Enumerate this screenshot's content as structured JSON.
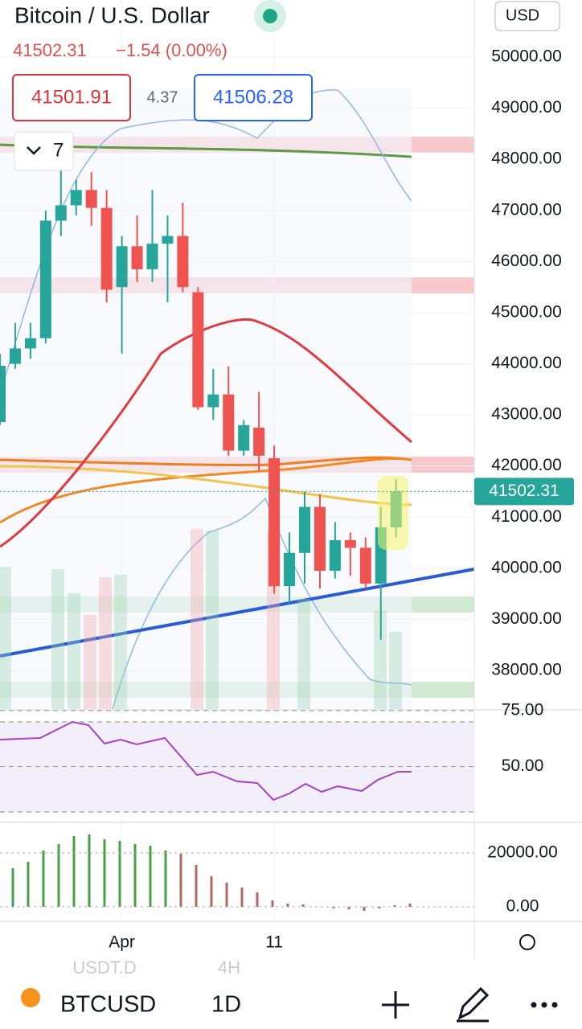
{
  "header": {
    "title": "Bitcoin / U.S. Dollar",
    "quote": "41502.31",
    "change": "−1.54 (0.00%)",
    "bid": "41501.91",
    "spread": "4.37",
    "ask": "41506.28",
    "currency": "USD",
    "indicators": "7"
  },
  "chart_data": {
    "type": "candlestick",
    "up_color": "#26a69a",
    "down_color": "#ef5350",
    "ylim": [
      37245,
      51117
    ],
    "yticks": [
      {
        "value": 38000,
        "label": "38000.00"
      },
      {
        "value": 39000,
        "label": "39000.00"
      },
      {
        "value": 40000,
        "label": "40000.00"
      },
      {
        "value": 41000,
        "label": "41000.00"
      },
      {
        "value": 42000,
        "label": "42000.00"
      },
      {
        "value": 43000,
        "label": "43000.00"
      },
      {
        "value": 44000,
        "label": "44000.00"
      },
      {
        "value": 45000,
        "label": "45000.00"
      },
      {
        "value": 46000,
        "label": "46000.00"
      },
      {
        "value": 47000,
        "label": "47000.00"
      },
      {
        "value": 48000,
        "label": "48000.00"
      },
      {
        "value": 49000,
        "label": "49000.00"
      },
      {
        "value": 50000,
        "label": "50000.00"
      }
    ],
    "last_price": {
      "value": 41502.31,
      "label": "41502.31"
    },
    "categories": [
      null,
      null,
      null,
      null,
      null,
      null,
      null,
      null,
      "Apr",
      null,
      null,
      null,
      null,
      null,
      null,
      null,
      null,
      null,
      "11",
      null,
      null,
      null,
      null,
      null,
      null,
      null,
      null
    ],
    "candles": [
      {
        "open": 42860,
        "high": 44200,
        "low": 42800,
        "close": 43960
      },
      {
        "open": 44000,
        "high": 44800,
        "low": 43900,
        "close": 44300
      },
      {
        "open": 44300,
        "high": 44800,
        "low": 44100,
        "close": 44500
      },
      {
        "open": 44500,
        "high": 47000,
        "low": 44400,
        "close": 46800
      },
      {
        "open": 46800,
        "high": 47900,
        "low": 46500,
        "close": 47100
      },
      {
        "open": 47100,
        "high": 47600,
        "low": 46900,
        "close": 47400
      },
      {
        "open": 47400,
        "high": 47750,
        "low": 46700,
        "close": 47050
      },
      {
        "open": 47050,
        "high": 47400,
        "low": 45200,
        "close": 45450
      },
      {
        "open": 45500,
        "high": 46500,
        "low": 44200,
        "close": 46300
      },
      {
        "open": 46300,
        "high": 46900,
        "low": 45600,
        "close": 45850
      },
      {
        "open": 45850,
        "high": 47400,
        "low": 45600,
        "close": 46350
      },
      {
        "open": 46350,
        "high": 46900,
        "low": 45200,
        "close": 46500
      },
      {
        "open": 46500,
        "high": 47150,
        "low": 45400,
        "close": 45500
      },
      {
        "open": 45400,
        "high": 45500,
        "low": 43100,
        "close": 43150
      },
      {
        "open": 43150,
        "high": 43900,
        "low": 42900,
        "close": 43400
      },
      {
        "open": 43400,
        "high": 43950,
        "low": 42200,
        "close": 42300
      },
      {
        "open": 42300,
        "high": 42900,
        "low": 42200,
        "close": 42800
      },
      {
        "open": 42750,
        "high": 43450,
        "low": 41900,
        "close": 42200
      },
      {
        "open": 42150,
        "high": 42400,
        "low": 39500,
        "close": 39650
      },
      {
        "open": 39650,
        "high": 40700,
        "low": 39300,
        "close": 40300
      },
      {
        "open": 40300,
        "high": 41500,
        "low": 39700,
        "close": 41200
      },
      {
        "open": 41200,
        "high": 41450,
        "low": 39600,
        "close": 39950
      },
      {
        "open": 39950,
        "high": 40900,
        "low": 39800,
        "close": 40550
      },
      {
        "open": 40550,
        "high": 40700,
        "low": 39850,
        "close": 40400
      },
      {
        "open": 40400,
        "high": 40600,
        "low": 39600,
        "close": 39700
      },
      {
        "open": 39700,
        "high": 41200,
        "low": 38600,
        "close": 40800
      },
      {
        "open": 40800,
        "high": 41750,
        "low": 40600,
        "close": 41502.31
      }
    ]
  },
  "rsi": {
    "ylim": [
      25,
      75
    ],
    "yticks": [
      {
        "value": 50,
        "label": "50.00"
      },
      {
        "value": 75,
        "label": "75.00"
      }
    ]
  },
  "macd": {
    "ylim": [
      -5075,
      31040
    ],
    "yticks": [
      {
        "value": 0,
        "label": "0.00"
      },
      {
        "value": 20000,
        "label": "20000.00"
      }
    ]
  },
  "footer": {
    "ghost_symbol": "USDT.D",
    "ghost_interval": "4H",
    "symbol": "BTCUSD",
    "interval": "1D"
  }
}
